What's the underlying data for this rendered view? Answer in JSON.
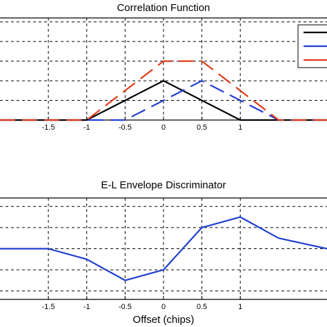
{
  "chart_data": [
    {
      "type": "line",
      "title": "Correlation Function",
      "xlabel": "",
      "ylabel": "",
      "xlim": [
        -2.13,
        2.13
      ],
      "ylim": [
        0,
        1.3
      ],
      "grid": "dashed",
      "x_ticks": [
        -1.5,
        -1,
        -0.5,
        0,
        0.5,
        1
      ],
      "x_tick_labels": [
        "-1.5",
        "-1",
        "-0.5",
        "0",
        "0.5",
        "1"
      ],
      "y_ticks": [
        0.25,
        0.5,
        0.75,
        1.0,
        1.25
      ],
      "legend": {
        "placement": "top-right",
        "entries": [
          "",
          "",
          ""
        ]
      },
      "series": [
        {
          "color": "#000000",
          "line": "solid",
          "x": [
            -2.13,
            -1,
            0,
            1,
            2.13
          ],
          "y": [
            0,
            0,
            0.5,
            0,
            0
          ]
        },
        {
          "color": "#1f3fcf",
          "line": "dashed",
          "x": [
            -2.13,
            -0.5,
            0.5,
            1.5,
            2.13
          ],
          "y": [
            0,
            0,
            0.5,
            0,
            0
          ]
        },
        {
          "color": "#e03a1a",
          "line": "dashed",
          "x": [
            -2.13,
            -1,
            0,
            0.5,
            1.5,
            2.13
          ],
          "y": [
            0,
            0,
            0.75,
            0.75,
            0,
            0
          ]
        }
      ]
    },
    {
      "type": "line",
      "title": "E-L Envelope Discriminator",
      "xlabel": "Offset (chips)",
      "ylabel": "",
      "xlim": [
        -2.13,
        2.13
      ],
      "ylim": [
        -0.6,
        0.6
      ],
      "grid": "dashed",
      "x_ticks": [
        -1.5,
        -1,
        -0.5,
        0,
        0.5,
        1
      ],
      "x_tick_labels": [
        "-1.5",
        "-1",
        "-0.5",
        "0",
        "0.5",
        "1"
      ],
      "y_ticks": [
        -0.5,
        -0.25,
        0,
        0.25,
        0.5
      ],
      "series": [
        {
          "color": "#1f3fcf",
          "line": "solid",
          "x": [
            -2.13,
            -1.5,
            -1,
            -0.5,
            0,
            0.5,
            1,
            1.5,
            2.13
          ],
          "y": [
            0,
            0,
            -0.125,
            -0.375,
            -0.25,
            0.25,
            0.375,
            0.125,
            0
          ]
        }
      ]
    }
  ]
}
